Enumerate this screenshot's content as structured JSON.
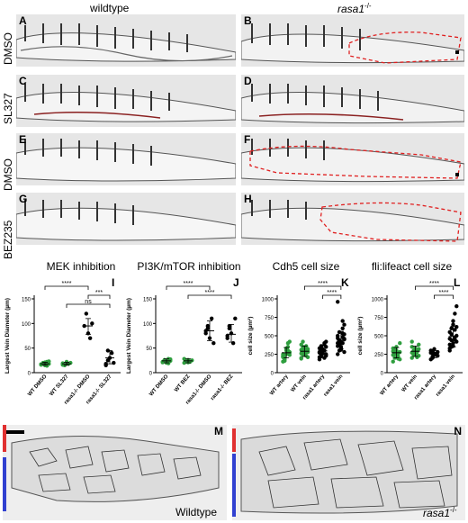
{
  "headers": {
    "left": "wildtype",
    "right_italic": "rasa1",
    "right_sup": "-/-"
  },
  "row_labels": [
    "DMSO",
    "SL327",
    "DMSO",
    "BEZ235"
  ],
  "panels": [
    "A",
    "B",
    "C",
    "D",
    "E",
    "F",
    "G",
    "H"
  ],
  "bottom_panels": {
    "left_letter": "M",
    "left_label": "Wildtype",
    "right_letter": "N",
    "right_label_italic": "rasa1",
    "right_label_sup": "-/-"
  },
  "chart_data": [
    {
      "type": "scatter",
      "panel": "I",
      "title": "MEK inhibition",
      "ylabel": "Largest Vein Diameter (µm)",
      "categories": [
        "WT DMSO",
        "WT SL327",
        "rasa1-/- DMSO",
        "rasa1-/- SL327"
      ],
      "ylim": [
        0,
        150
      ],
      "yticks": [
        0,
        50,
        100,
        150
      ],
      "colors": [
        "#2e9e3e",
        "#2e9e3e",
        "#000000",
        "#000000"
      ],
      "points": [
        [
          17,
          20,
          15,
          22,
          18,
          16,
          19,
          21,
          14,
          23,
          17
        ],
        [
          19,
          15,
          22,
          18,
          20,
          16
        ],
        [
          95,
          120,
          80,
          70,
          100
        ],
        [
          15,
          25,
          30,
          40,
          20,
          18,
          45
        ]
      ],
      "mean": [
        18,
        18,
        95,
        30
      ],
      "sd_low": [
        15,
        15,
        78,
        18
      ],
      "sd_high": [
        21,
        21,
        110,
        45
      ],
      "significance": [
        {
          "pair": [
            0,
            2
          ],
          "label": "****"
        },
        {
          "pair": [
            2,
            3
          ],
          "label": "***"
        },
        {
          "pair": [
            1,
            3
          ],
          "label": "ns"
        }
      ]
    },
    {
      "type": "scatter",
      "panel": "J",
      "title": "PI3K/mTOR inhibition",
      "ylabel": "Largest Vein Diameter (µm)",
      "categories": [
        "WT DMSO",
        "WT BEZ",
        "rasa1-/- DMSO",
        "rasa1-/- BEZ"
      ],
      "ylim": [
        0,
        150
      ],
      "yticks": [
        0,
        50,
        100,
        150
      ],
      "colors": [
        "#2e9e3e",
        "#2e9e3e",
        "#000000",
        "#000000"
      ],
      "points": [
        [
          22,
          25,
          20,
          28,
          24,
          21,
          26,
          23,
          19,
          27
        ],
        [
          20,
          24,
          26,
          22,
          25,
          28,
          23,
          21
        ],
        [
          80,
          90,
          70,
          110,
          60,
          85,
          95
        ],
        [
          70,
          95,
          80,
          60,
          110,
          75,
          90
        ]
      ],
      "mean": [
        24,
        24,
        85,
        78
      ],
      "sd_low": [
        20,
        20,
        65,
        62
      ],
      "sd_high": [
        28,
        28,
        105,
        98
      ],
      "significance": [
        {
          "pair": [
            0,
            2
          ],
          "label": "****"
        },
        {
          "pair": [
            1,
            3
          ],
          "label": "****"
        }
      ]
    },
    {
      "type": "scatter",
      "panel": "K",
      "title": "Cdh5 cell size",
      "ylabel": "cell size (µm²)",
      "categories": [
        "WT artery",
        "WT vein",
        "rasa1 artery",
        "rasa1 vein"
      ],
      "ylim": [
        0,
        1000
      ],
      "yticks": [
        0,
        250,
        500,
        750,
        1000
      ],
      "colors": [
        "#2e9e3e",
        "#2e9e3e",
        "#000000",
        "#000000"
      ],
      "points": [
        [
          150,
          200,
          250,
          300,
          280,
          220,
          180,
          330,
          260,
          240,
          210,
          190,
          300,
          350,
          270,
          230,
          160,
          310,
          400,
          420,
          250
        ],
        [
          200,
          250,
          300,
          280,
          320,
          260,
          350,
          240,
          230,
          290,
          310,
          270,
          330,
          360,
          210,
          380,
          420,
          250,
          300,
          280,
          190
        ],
        [
          180,
          220,
          260,
          300,
          350,
          280,
          240,
          320,
          400,
          230,
          270,
          290,
          310,
          200,
          250,
          330,
          360,
          260,
          380,
          420,
          210
        ],
        [
          250,
          300,
          350,
          400,
          450,
          500,
          380,
          420,
          480,
          520,
          360,
          440,
          310,
          600,
          460,
          400,
          550,
          330,
          700,
          650,
          470,
          390,
          410,
          530,
          280,
          960
        ]
      ],
      "mean": [
        270,
        290,
        295,
        440
      ],
      "sd_low": [
        200,
        220,
        220,
        320
      ],
      "sd_high": [
        340,
        360,
        370,
        560
      ],
      "significance": [
        {
          "pair": [
            1,
            3
          ],
          "label": "****"
        },
        {
          "pair": [
            2,
            3
          ],
          "label": "****"
        }
      ]
    },
    {
      "type": "scatter",
      "panel": "L",
      "title": "fli:lifeact cell size",
      "ylabel": "cell size (µm²)",
      "categories": [
        "WT artery",
        "WT vein",
        "rasa1 artery",
        "rasa1 vein"
      ],
      "ylim": [
        0,
        1000
      ],
      "yticks": [
        0,
        250,
        500,
        750,
        1000
      ],
      "colors": [
        "#2e9e3e",
        "#2e9e3e",
        "#000000",
        "#000000"
      ],
      "points": [
        [
          150,
          250,
          300,
          220,
          280,
          330,
          200,
          350,
          260,
          180,
          240,
          310,
          270,
          190,
          400,
          290
        ],
        [
          200,
          250,
          300,
          280,
          320,
          350,
          240,
          260,
          310,
          230,
          270,
          290,
          330,
          210,
          380,
          420,
          300,
          250
        ],
        [
          180,
          220,
          260,
          240,
          280,
          300,
          200,
          320,
          250,
          230,
          270,
          290
        ],
        [
          300,
          350,
          400,
          450,
          500,
          550,
          600,
          650,
          480,
          420,
          380,
          520,
          700,
          800,
          900,
          460,
          440,
          360,
          580,
          620,
          330
        ]
      ],
      "mean": [
        270,
        290,
        250,
        490
      ],
      "sd_low": [
        200,
        220,
        200,
        350
      ],
      "sd_high": [
        340,
        360,
        300,
        630
      ],
      "significance": [
        {
          "pair": [
            1,
            3
          ],
          "label": "****"
        },
        {
          "pair": [
            2,
            3
          ],
          "label": "****"
        }
      ]
    }
  ]
}
